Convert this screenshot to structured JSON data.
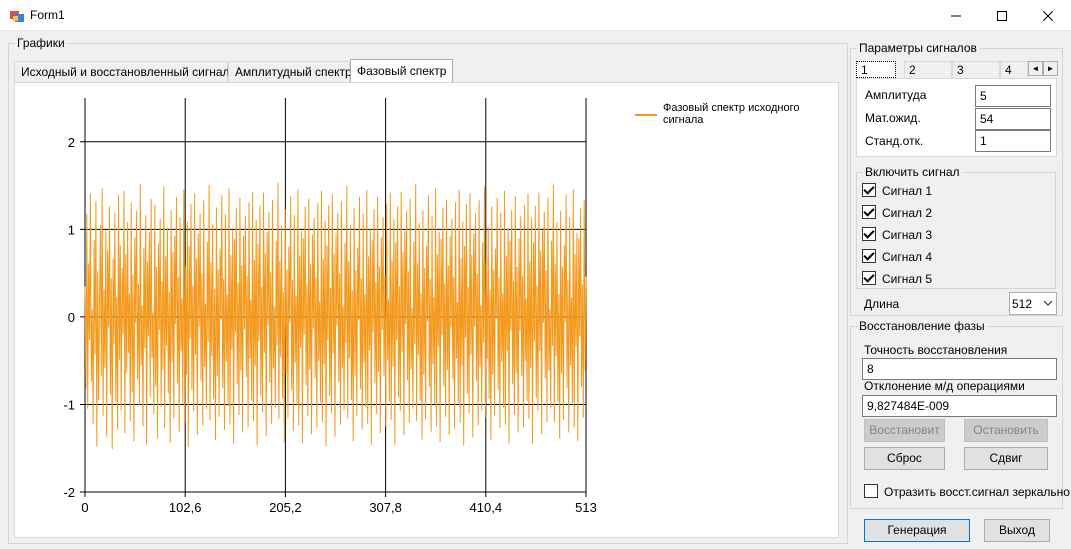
{
  "window": {
    "title": "Form1"
  },
  "graphs": {
    "group_label": "Графики",
    "tabs": [
      "Исходный и восстановленный сигнал",
      "Амплитудный спектр",
      "Фазовый спектр"
    ],
    "active_tab": 2
  },
  "chart_data": {
    "type": "line",
    "title": "",
    "xlabel": "",
    "ylabel": "",
    "xlim": [
      0,
      513
    ],
    "ylim": [
      -2,
      2.5
    ],
    "x_ticks": [
      "0",
      "102,6",
      "205,2",
      "307,8",
      "410,4",
      "513"
    ],
    "y_ticks": [
      "2",
      "1",
      "0",
      "-1",
      "-2"
    ],
    "grid": true,
    "legend_position": "top-right",
    "series": [
      {
        "name": "Фазовый спектр исходного сигнала",
        "color": "#f39a1e",
        "values": [
          0.35,
          -0.82,
          1.18,
          -1.05,
          0.61,
          -0.27,
          1.41,
          -0.74,
          0.09,
          -1.22,
          0.88,
          -0.43,
          1.32,
          -1.48,
          0.52,
          -0.95,
          0.17,
          1.05,
          -0.68,
          1.47,
          -1.13,
          0.31,
          -0.58,
          0.99,
          -1.37,
          0.76,
          -0.12,
          1.26,
          -0.89,
          0.44,
          -1.51,
          0.67,
          -0.31,
          1.19,
          -0.97,
          0.23,
          -1.28,
          1.39,
          -0.49,
          0.82,
          -1.07,
          0.56,
          -0.19,
          1.44,
          -1.33,
          0.72,
          -0.64,
          1.08,
          -0.41,
          0.27,
          -1.19,
          1.31,
          -0.86,
          0.48,
          -1.42,
          0.91,
          -0.07,
          1.21,
          -0.71,
          0.38,
          -1.01,
          1.52,
          -0.55,
          0.13,
          -1.25,
          0.79,
          -0.36,
          1.16,
          -1.46,
          0.63,
          -0.22,
          0.97,
          -0.92,
          1.35,
          -0.47,
          0.05,
          -1.11,
          1.28,
          -0.79,
          0.57,
          -1.39,
          0.84,
          -0.15,
          1.12,
          -1.03,
          0.41,
          -0.61,
          1.49,
          -1.27,
          0.69,
          -0.33,
          1.02,
          -0.87,
          0.29,
          -1.44,
          1.22,
          -0.52,
          0.74,
          -1.16,
          0.93,
          -0.08,
          1.37,
          -0.76,
          0.46,
          -1.31,
          1.14,
          -0.39,
          0.21,
          -0.99,
          1.45,
          -1.21,
          0.58,
          -0.66,
          1.09,
          -1.49,
          0.81,
          -0.25,
          1.29,
          -0.84,
          0.36,
          -1.08,
          1.41,
          -0.44,
          0.67,
          -1.35,
          0.95,
          -0.11,
          1.18,
          -0.73,
          0.49,
          -1.24,
          1.33,
          -0.57,
          0.15,
          -1.05,
          0.86,
          -0.29,
          1.51,
          -1.18,
          0.62,
          -0.45,
          1.06,
          -0.94,
          0.32,
          -1.41,
          1.25,
          -0.68,
          0.54,
          -1.14,
          0.78,
          -0.03,
          1.39,
          -0.81,
          0.43,
          -1.29,
          1.17,
          -0.51,
          0.25,
          -1.02,
          1.47,
          -1.23,
          0.71,
          -0.37,
          0.99,
          -1.45,
          0.89,
          -0.18,
          1.24,
          -0.77,
          0.39,
          -1.12,
          1.36,
          -0.62,
          0.59,
          -1.32,
          0.92,
          -0.14,
          1.15,
          -0.69,
          0.47,
          -1.26,
          1.31,
          -0.48,
          0.19,
          -0.96,
          1.43,
          -1.19,
          0.65,
          -0.56,
          1.11,
          -1.47,
          0.83,
          -0.28,
          1.27,
          -0.91,
          0.34,
          -1.09,
          1.42,
          -0.41,
          0.73,
          -1.36,
          0.97,
          -0.09,
          1.2,
          -0.75,
          0.51,
          -1.22,
          1.34,
          -0.59,
          0.11,
          -1.04,
          0.87,
          -0.32,
          1.53,
          -1.17,
          0.64,
          -0.46,
          1.04,
          -0.93,
          0.28,
          -1.43,
          1.23,
          -0.65,
          0.55,
          -1.15,
          0.8,
          -0.06,
          1.38,
          -0.83,
          0.42,
          -1.3,
          1.16,
          -0.53,
          0.24,
          -1.01,
          1.46,
          -1.24,
          0.7,
          -0.35,
          0.98,
          -1.44,
          0.9,
          -0.2,
          1.26,
          -0.78,
          0.37,
          -1.13,
          1.35,
          -0.6,
          0.6,
          -1.34,
          0.94,
          -0.13,
          1.13,
          -0.7,
          0.45,
          -1.27,
          1.3,
          -0.5,
          0.18,
          -0.98,
          1.44,
          -1.2,
          0.66,
          -0.54,
          1.1,
          -1.48,
          0.82,
          -0.26,
          1.28,
          -0.9,
          0.33,
          -1.1,
          1.4,
          -0.42,
          0.72,
          -1.37,
          0.96,
          -0.1,
          1.19,
          -0.74,
          0.5,
          -1.23,
          1.32,
          -0.58,
          0.12,
          -1.06,
          0.85,
          -0.3,
          1.5,
          -1.16,
          0.63,
          -0.47,
          1.05,
          -0.95,
          0.3,
          -1.42,
          1.24,
          -0.67,
          0.53,
          -1.13,
          0.79,
          -0.04,
          1.37,
          -0.82,
          0.44,
          -1.28,
          1.18,
          -0.52,
          0.26,
          -1.03,
          1.45,
          -1.22,
          0.69,
          -0.38,
          1.0,
          -1.46,
          0.88,
          -0.17,
          1.23,
          -0.76,
          0.4,
          -1.11,
          1.37,
          -0.63,
          0.58,
          -1.33,
          0.91,
          -0.15,
          1.14,
          -0.68,
          0.48,
          -1.25,
          1.29,
          -0.49,
          0.2,
          -0.97,
          1.42,
          -1.18,
          0.64,
          -0.57,
          1.12,
          -1.46,
          0.84,
          -0.27,
          1.26,
          -0.92,
          0.35,
          -1.08,
          1.43,
          -0.4,
          0.74,
          -1.35,
          0.98,
          -0.08,
          1.21,
          -0.72,
          0.52,
          -1.21,
          1.35,
          -0.6,
          0.1,
          -1.05,
          0.86,
          -0.31,
          1.52,
          -1.19,
          0.61,
          -0.44,
          1.07,
          -0.96,
          0.27,
          -1.4,
          1.22,
          -0.66,
          0.56,
          -1.17,
          0.81,
          -0.05,
          1.39,
          -0.8,
          0.43,
          -1.31,
          1.15,
          -0.54,
          0.23,
          -1.0,
          1.47,
          -1.25,
          0.71,
          -0.34,
          0.97,
          -1.43,
          0.89,
          -0.21,
          1.25,
          -0.79,
          0.38,
          -1.14,
          1.34,
          -0.61,
          0.59,
          -1.35,
          0.93,
          -0.12,
          1.12,
          -0.71,
          0.46,
          -1.28,
          1.31,
          -0.48,
          0.17,
          -0.99,
          1.45,
          -1.21,
          0.67,
          -0.55,
          1.09,
          -1.47,
          0.81,
          -0.24,
          1.29,
          -0.88,
          0.34,
          -1.1,
          1.41,
          -0.43,
          0.71,
          -1.38,
          0.95,
          -0.11,
          1.18,
          -0.73,
          0.49,
          -1.24,
          1.33,
          -0.57,
          0.13,
          -1.07,
          0.85,
          -0.29,
          1.49,
          -1.15,
          0.62,
          -0.48,
          1.03,
          -0.94,
          0.31,
          -1.41,
          1.26,
          -0.66,
          0.54,
          -1.12,
          0.78,
          -0.02,
          1.36,
          -0.83,
          0.45,
          -1.27,
          1.19,
          -0.51,
          0.27,
          -1.04,
          1.44,
          -1.23,
          0.7,
          -0.39,
          1.01,
          -1.45,
          0.87,
          -0.16,
          1.22,
          -0.77,
          0.41,
          -1.12,
          1.38,
          -0.64,
          0.57,
          -1.32,
          0.9,
          -0.16,
          1.15,
          -0.67,
          0.47,
          -1.26,
          1.28,
          -0.5,
          0.21,
          -0.96,
          1.41,
          -1.17,
          0.63,
          -0.58,
          1.13,
          -1.45,
          0.85,
          -0.28,
          1.27,
          -0.93,
          0.36,
          -1.07,
          1.42,
          -0.39,
          0.75,
          -1.34,
          0.99,
          -0.07,
          1.2,
          -0.71,
          0.53,
          -1.2,
          1.36,
          -0.61,
          0.09,
          -1.04,
          0.87,
          -0.33,
          1.51,
          -1.2,
          0.6,
          -0.45,
          1.08,
          -0.97,
          0.26,
          -1.39,
          1.21,
          -0.65,
          0.57,
          -1.18,
          0.82,
          -0.06,
          1.4,
          -0.81,
          0.42,
          -1.32,
          1.14,
          -0.55,
          0.22,
          -0.98,
          1.46,
          -1.26,
          0.72,
          -0.33,
          0.96,
          -1.42,
          0.9,
          -0.22,
          1.24,
          -0.8,
          0.37,
          -1.15,
          1.33,
          -0.62,
          0.46
        ]
      }
    ]
  },
  "params": {
    "group_label": "Параметры сигналов",
    "tabs": [
      "1",
      "2",
      "3",
      "4"
    ],
    "active_tab": 0,
    "scroll_left": "◄",
    "scroll_right": "►",
    "amplitude_label": "Амплитуда",
    "amplitude_value": "5",
    "mean_label": "Мат.ожид.",
    "mean_value": "54",
    "std_label": "Станд.отк.",
    "std_value": "1"
  },
  "enable": {
    "group_label": "Включить сигнал",
    "signals": [
      {
        "label": "Сигнал 1",
        "checked": true
      },
      {
        "label": "Сигнал 2",
        "checked": true
      },
      {
        "label": "Сигнал 3",
        "checked": true
      },
      {
        "label": "Сигнал 4",
        "checked": true
      },
      {
        "label": "Сигнал 5",
        "checked": true
      }
    ]
  },
  "length": {
    "label": "Длина",
    "value": "512"
  },
  "recovery": {
    "group_label": "Восстановление фазы",
    "accuracy_label": "Точность восстановления",
    "accuracy_value": "8",
    "deviation_label": "Отклонение м/д операциями",
    "deviation_value": "9,827484E-009",
    "restore_button": "Восстановит",
    "stop_button": "Остановить",
    "reset_button": "Сброс",
    "shift_button": "Сдвиг",
    "mirror_label": "Отразить восст.сигнал зеркально",
    "mirror_checked": false
  },
  "footer": {
    "generate_button": "Генерация",
    "exit_button": "Выход"
  }
}
